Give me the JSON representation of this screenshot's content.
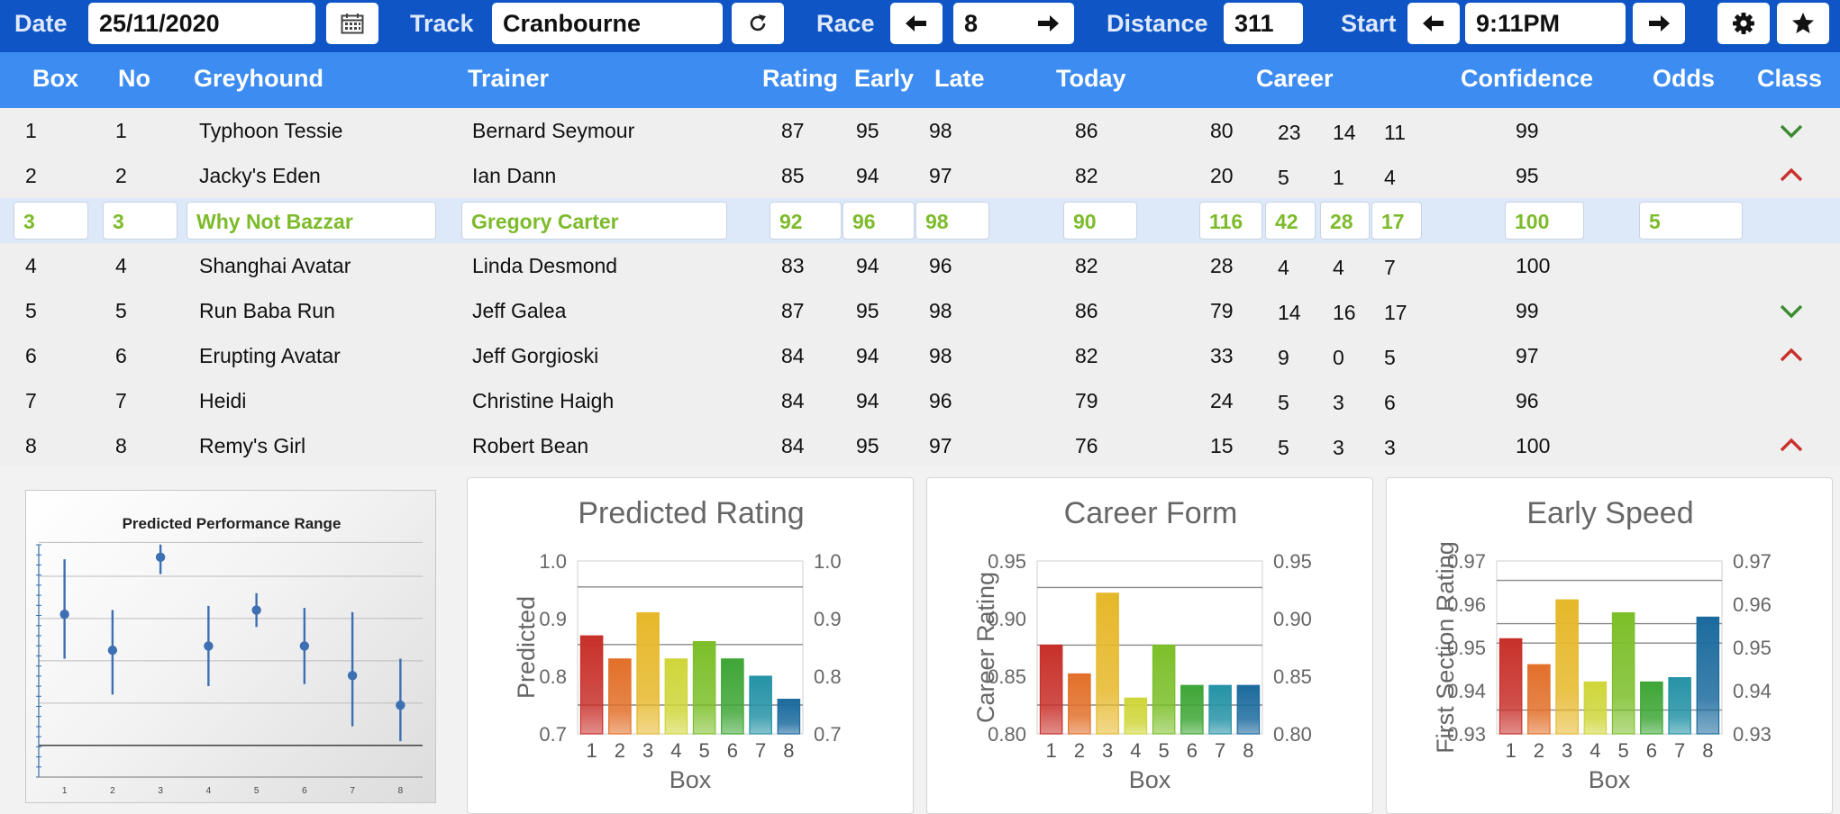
{
  "toolbar": {
    "date_label": "Date",
    "date_value": "25/11/2020",
    "calendar_icon": "calendar-icon",
    "track_label": "Track",
    "track_value": "Cranbourne",
    "refresh_icon": "refresh-icon",
    "race_label": "Race",
    "race_value": "8",
    "distance_label": "Distance",
    "distance_value": "311",
    "start_label": "Start",
    "start_value": "9:11PM",
    "settings_icon": "gear-icon",
    "favourite_icon": "star-icon"
  },
  "columns": {
    "box": "Box",
    "no": "No",
    "greyhound": "Greyhound",
    "trainer": "Trainer",
    "rating": "Rating",
    "early": "Early",
    "late": "Late",
    "today": "Today",
    "career": "Career",
    "confidence": "Confidence",
    "odds": "Odds",
    "class": "Class"
  },
  "rows": [
    {
      "box": "1",
      "no": "1",
      "greyhound": "Typhoon Tessie",
      "trainer": "Bernard Seymour",
      "rating": "87",
      "early": "95",
      "late": "98",
      "today": "86",
      "career": [
        "80",
        "23",
        "14",
        "11"
      ],
      "confidence": "99",
      "odds": "",
      "class": "up"
    },
    {
      "box": "2",
      "no": "2",
      "greyhound": "Jacky's Eden",
      "trainer": "Ian Dann",
      "rating": "85",
      "early": "94",
      "late": "97",
      "today": "82",
      "career": [
        "20",
        "5",
        "1",
        "4"
      ],
      "confidence": "95",
      "odds": "",
      "class": "down"
    },
    {
      "box": "3",
      "no": "3",
      "greyhound": "Why Not Bazzar",
      "trainer": "Gregory Carter",
      "rating": "92",
      "early": "96",
      "late": "98",
      "today": "90",
      "career": [
        "116",
        "42",
        "28",
        "17"
      ],
      "confidence": "100",
      "odds": "5",
      "class": ""
    },
    {
      "box": "4",
      "no": "4",
      "greyhound": "Shanghai Avatar",
      "trainer": "Linda Desmond",
      "rating": "83",
      "early": "94",
      "late": "96",
      "today": "82",
      "career": [
        "28",
        "4",
        "4",
        "7"
      ],
      "confidence": "100",
      "odds": "",
      "class": ""
    },
    {
      "box": "5",
      "no": "5",
      "greyhound": "Run Baba Run",
      "trainer": "Jeff Galea",
      "rating": "87",
      "early": "95",
      "late": "98",
      "today": "86",
      "career": [
        "79",
        "14",
        "16",
        "17"
      ],
      "confidence": "99",
      "odds": "",
      "class": "up"
    },
    {
      "box": "6",
      "no": "6",
      "greyhound": "Erupting Avatar",
      "trainer": "Jeff Gorgioski",
      "rating": "84",
      "early": "94",
      "late": "98",
      "today": "82",
      "career": [
        "33",
        "9",
        "0",
        "5"
      ],
      "confidence": "97",
      "odds": "",
      "class": "down"
    },
    {
      "box": "7",
      "no": "7",
      "greyhound": "Heidi",
      "trainer": "Christine Haigh",
      "rating": "84",
      "early": "94",
      "late": "96",
      "today": "79",
      "career": [
        "24",
        "5",
        "3",
        "6"
      ],
      "confidence": "96",
      "odds": "",
      "class": ""
    },
    {
      "box": "8",
      "no": "8",
      "greyhound": "Remy's Girl",
      "trainer": "Robert Bean",
      "rating": "84",
      "early": "95",
      "late": "97",
      "today": "76",
      "career": [
        "15",
        "5",
        "3",
        "3"
      ],
      "confidence": "100",
      "odds": "",
      "class": "down"
    }
  ],
  "selected_row": 2,
  "colors": {
    "toolbar": "#0f55c6",
    "header": "#3d8cf2",
    "selected_text": "#7dbb2b",
    "class_up": "#3a8b2e",
    "class_down": "#c8312b",
    "bars": [
      "#c8302a",
      "#e2702a",
      "#e6b82a",
      "#cfd63a",
      "#7cbf2a",
      "#3ea636",
      "#2593a6",
      "#1c6b9e"
    ]
  },
  "chart_data": [
    {
      "type": "scatter",
      "title": "Predicted Performance Range",
      "x": [
        1,
        2,
        3,
        4,
        5,
        6,
        7,
        8
      ],
      "y": [
        0.62,
        0.45,
        0.89,
        0.47,
        0.64,
        0.47,
        0.33,
        0.19
      ],
      "y_low": [
        0.41,
        0.24,
        0.81,
        0.28,
        0.56,
        0.29,
        0.09,
        0.02
      ],
      "y_high": [
        0.88,
        0.64,
        0.95,
        0.66,
        0.72,
        0.65,
        0.63,
        0.41
      ],
      "ylim": [
        -0.15,
        1.0
      ]
    },
    {
      "type": "bar",
      "title": "Predicted Rating",
      "xlabel": "Box",
      "ylabel": "Predicted",
      "categories": [
        "1",
        "2",
        "3",
        "4",
        "5",
        "6",
        "7",
        "8"
      ],
      "values": [
        0.87,
        0.83,
        0.91,
        0.83,
        0.86,
        0.83,
        0.8,
        0.76
      ],
      "ylim": [
        0.7,
        1.0
      ],
      "yticks": [
        "0.7",
        "0.8",
        "0.9",
        "1.0"
      ],
      "gridlines": [
        0.75,
        0.855,
        0.955
      ]
    },
    {
      "type": "bar",
      "title": "Career Form",
      "xlabel": "Box",
      "ylabel": "Career Rating",
      "categories": [
        "1",
        "2",
        "3",
        "4",
        "5",
        "6",
        "7",
        "8"
      ],
      "values": [
        0.877,
        0.852,
        0.922,
        0.831,
        0.877,
        0.842,
        0.842,
        0.842
      ],
      "ylim": [
        0.8,
        0.95
      ],
      "yticks": [
        "0.80",
        "0.85",
        "0.90",
        "0.95"
      ],
      "gridlines": [
        0.825,
        0.877,
        0.927
      ]
    },
    {
      "type": "bar",
      "title": "Early Speed",
      "xlabel": "Box",
      "ylabel": "First Section Rating",
      "categories": [
        "1",
        "2",
        "3",
        "4",
        "5",
        "6",
        "7",
        "8"
      ],
      "values": [
        0.952,
        0.946,
        0.961,
        0.942,
        0.958,
        0.942,
        0.943,
        0.957
      ],
      "ylim": [
        0.93,
        0.97
      ],
      "yticks": [
        "0.93",
        "0.94",
        "0.95",
        "0.96",
        "0.97"
      ],
      "gridlines": [
        0.9355,
        0.951,
        0.9555,
        0.9655
      ]
    }
  ]
}
